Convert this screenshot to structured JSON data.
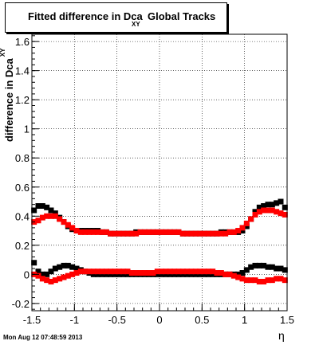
{
  "title": {
    "prefix": "Fitted difference in Dca",
    "subscript": "XY",
    "suffix": "Global Tracks"
  },
  "footer": "Mon Aug 12 07:48:59 2013",
  "chart_data": {
    "type": "scatter",
    "xlabel": "η",
    "ylabel": "difference in Dca",
    "ylabel_subscript": "XY",
    "xlim": [
      -1.5,
      1.5
    ],
    "ylim": [
      -0.25,
      1.65
    ],
    "grid": true,
    "xticks": [
      "-1.5",
      "-1",
      "-0.5",
      "0",
      "0.5",
      "1",
      "1.5"
    ],
    "yticks": [
      "-0.2",
      "0",
      "0.2",
      "0.4",
      "0.6",
      "0.8",
      "1",
      "1.2",
      "1.4",
      "1.6"
    ],
    "series": [
      {
        "color": "#000000",
        "x": [
          -1.475,
          -1.425,
          -1.375,
          -1.325,
          -1.275,
          -1.225,
          -1.175,
          -1.125,
          -1.075,
          -1.025,
          -0.975,
          -0.925,
          -0.875,
          -0.825,
          -0.775,
          -0.725,
          -0.675,
          -0.625,
          -0.575,
          -0.525,
          -0.475,
          -0.425,
          -0.375,
          -0.325,
          -0.275,
          -0.225,
          -0.175,
          -0.125,
          -0.075,
          -0.025,
          0.025,
          0.075,
          0.125,
          0.175,
          0.225,
          0.275,
          0.325,
          0.375,
          0.425,
          0.475,
          0.525,
          0.575,
          0.625,
          0.675,
          0.725,
          0.775,
          0.825,
          0.875,
          0.925,
          0.975,
          1.025,
          1.075,
          1.125,
          1.175,
          1.225,
          1.275,
          1.325,
          1.375,
          1.425,
          1.475
        ],
        "y": [
          0.44,
          0.47,
          0.47,
          0.46,
          0.44,
          0.42,
          0.39,
          0.36,
          0.33,
          0.31,
          0.3,
          0.3,
          0.3,
          0.3,
          0.3,
          0.3,
          0.29,
          0.29,
          0.28,
          0.28,
          0.28,
          0.28,
          0.28,
          0.28,
          0.29,
          0.29,
          0.29,
          0.29,
          0.29,
          0.29,
          0.29,
          0.29,
          0.29,
          0.29,
          0.29,
          0.28,
          0.28,
          0.28,
          0.28,
          0.28,
          0.28,
          0.28,
          0.28,
          0.28,
          0.29,
          0.29,
          0.29,
          0.29,
          0.29,
          0.3,
          0.33,
          0.38,
          0.43,
          0.46,
          0.47,
          0.48,
          0.48,
          0.49,
          0.5,
          0.46
        ]
      },
      {
        "color": "#ff0000",
        "x": [
          -1.475,
          -1.425,
          -1.375,
          -1.325,
          -1.275,
          -1.225,
          -1.175,
          -1.125,
          -1.075,
          -1.025,
          -0.975,
          -0.925,
          -0.875,
          -0.825,
          -0.775,
          -0.725,
          -0.675,
          -0.625,
          -0.575,
          -0.525,
          -0.475,
          -0.425,
          -0.375,
          -0.325,
          -0.275,
          -0.225,
          -0.175,
          -0.125,
          -0.075,
          -0.025,
          0.025,
          0.075,
          0.125,
          0.175,
          0.225,
          0.275,
          0.325,
          0.375,
          0.425,
          0.475,
          0.525,
          0.575,
          0.625,
          0.675,
          0.725,
          0.775,
          0.825,
          0.875,
          0.925,
          0.975,
          1.025,
          1.075,
          1.125,
          1.175,
          1.225,
          1.275,
          1.325,
          1.375,
          1.425,
          1.475
        ],
        "y": [
          0.36,
          0.37,
          0.39,
          0.4,
          0.4,
          0.4,
          0.38,
          0.36,
          0.34,
          0.32,
          0.3,
          0.29,
          0.29,
          0.29,
          0.29,
          0.29,
          0.29,
          0.29,
          0.28,
          0.28,
          0.28,
          0.28,
          0.28,
          0.28,
          0.28,
          0.29,
          0.29,
          0.29,
          0.29,
          0.29,
          0.29,
          0.29,
          0.29,
          0.29,
          0.29,
          0.28,
          0.28,
          0.28,
          0.28,
          0.28,
          0.28,
          0.28,
          0.28,
          0.28,
          0.28,
          0.28,
          0.29,
          0.29,
          0.3,
          0.32,
          0.35,
          0.38,
          0.41,
          0.43,
          0.44,
          0.44,
          0.44,
          0.43,
          0.42,
          0.41
        ]
      },
      {
        "color": "#000000",
        "x": [
          -1.475,
          -1.425,
          -1.375,
          -1.325,
          -1.275,
          -1.225,
          -1.175,
          -1.125,
          -1.075,
          -1.025,
          -0.975,
          -0.925,
          -0.875,
          -0.825,
          -0.775,
          -0.725,
          -0.675,
          -0.625,
          -0.575,
          -0.525,
          -0.475,
          -0.425,
          -0.375,
          -0.325,
          -0.275,
          -0.225,
          -0.175,
          -0.125,
          -0.075,
          -0.025,
          0.025,
          0.075,
          0.125,
          0.175,
          0.225,
          0.275,
          0.325,
          0.375,
          0.425,
          0.475,
          0.525,
          0.575,
          0.625,
          0.675,
          0.725,
          0.775,
          0.825,
          0.875,
          0.925,
          0.975,
          1.025,
          1.075,
          1.125,
          1.175,
          1.225,
          1.275,
          1.325,
          1.375,
          1.425,
          1.475
        ],
        "y": [
          0.08,
          0.02,
          0.0,
          0.0,
          0.02,
          0.04,
          0.05,
          0.06,
          0.06,
          0.05,
          0.04,
          0.03,
          0.02,
          0.01,
          0.0,
          0.0,
          0.0,
          0.0,
          0.0,
          0.0,
          0.0,
          0.0,
          0.0,
          0.0,
          0.0,
          0.0,
          0.0,
          0.0,
          0.0,
          0.0,
          0.0,
          0.0,
          0.0,
          0.0,
          0.0,
          0.0,
          0.0,
          0.0,
          0.0,
          0.0,
          0.0,
          0.0,
          0.0,
          0.0,
          0.0,
          0.0,
          0.0,
          0.0,
          0.0,
          0.01,
          0.03,
          0.05,
          0.06,
          0.06,
          0.06,
          0.05,
          0.05,
          0.04,
          0.04,
          0.03
        ]
      },
      {
        "color": "#ff0000",
        "x": [
          -1.475,
          -1.425,
          -1.375,
          -1.325,
          -1.275,
          -1.225,
          -1.175,
          -1.125,
          -1.075,
          -1.025,
          -0.975,
          -0.925,
          -0.875,
          -0.825,
          -0.775,
          -0.725,
          -0.675,
          -0.625,
          -0.575,
          -0.525,
          -0.475,
          -0.425,
          -0.375,
          -0.325,
          -0.275,
          -0.225,
          -0.175,
          -0.125,
          -0.075,
          -0.025,
          0.025,
          0.075,
          0.125,
          0.175,
          0.225,
          0.275,
          0.325,
          0.375,
          0.425,
          0.475,
          0.525,
          0.575,
          0.625,
          0.675,
          0.725,
          0.775,
          0.825,
          0.875,
          0.925,
          0.975,
          1.025,
          1.075,
          1.125,
          1.175,
          1.225,
          1.275,
          1.325,
          1.375,
          1.425,
          1.475
        ],
        "y": [
          0.0,
          -0.01,
          -0.03,
          -0.04,
          -0.05,
          -0.04,
          -0.03,
          -0.02,
          -0.01,
          0.0,
          0.01,
          0.02,
          0.02,
          0.02,
          0.02,
          0.02,
          0.02,
          0.02,
          0.02,
          0.02,
          0.02,
          0.02,
          0.02,
          0.01,
          0.01,
          0.01,
          0.01,
          0.01,
          0.01,
          0.02,
          0.02,
          0.02,
          0.02,
          0.02,
          0.02,
          0.02,
          0.02,
          0.02,
          0.02,
          0.02,
          0.02,
          0.02,
          0.02,
          0.01,
          0.01,
          0.0,
          0.0,
          -0.01,
          -0.02,
          -0.03,
          -0.04,
          -0.04,
          -0.04,
          -0.05,
          -0.05,
          -0.04,
          -0.04,
          -0.03,
          -0.03,
          -0.04
        ]
      }
    ]
  }
}
